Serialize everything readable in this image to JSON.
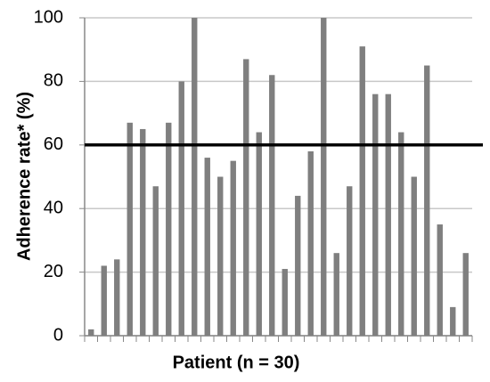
{
  "chart_data": {
    "type": "bar",
    "categories": [
      null,
      null,
      null,
      null,
      null,
      null,
      null,
      null,
      null,
      null,
      null,
      null,
      null,
      null,
      null,
      null,
      null,
      null,
      null,
      null,
      null,
      null,
      null,
      null,
      null,
      null,
      null,
      null,
      null,
      null
    ],
    "values": [
      2,
      22,
      24,
      67,
      65,
      47,
      67,
      80,
      100,
      56,
      50,
      55,
      87,
      64,
      82,
      21,
      44,
      58,
      100,
      26,
      47,
      91,
      76,
      76,
      64,
      50,
      85,
      35,
      9,
      26
    ],
    "color": "#7f7f7f",
    "x_label": "Patient (n = 30)",
    "y_label": "Adherence rate* (%)",
    "ylim": [
      0,
      100
    ],
    "yticks": [
      0,
      20,
      40,
      60,
      80,
      100
    ],
    "grid": true,
    "reference_line": 60,
    "reference_color": "#000000"
  }
}
